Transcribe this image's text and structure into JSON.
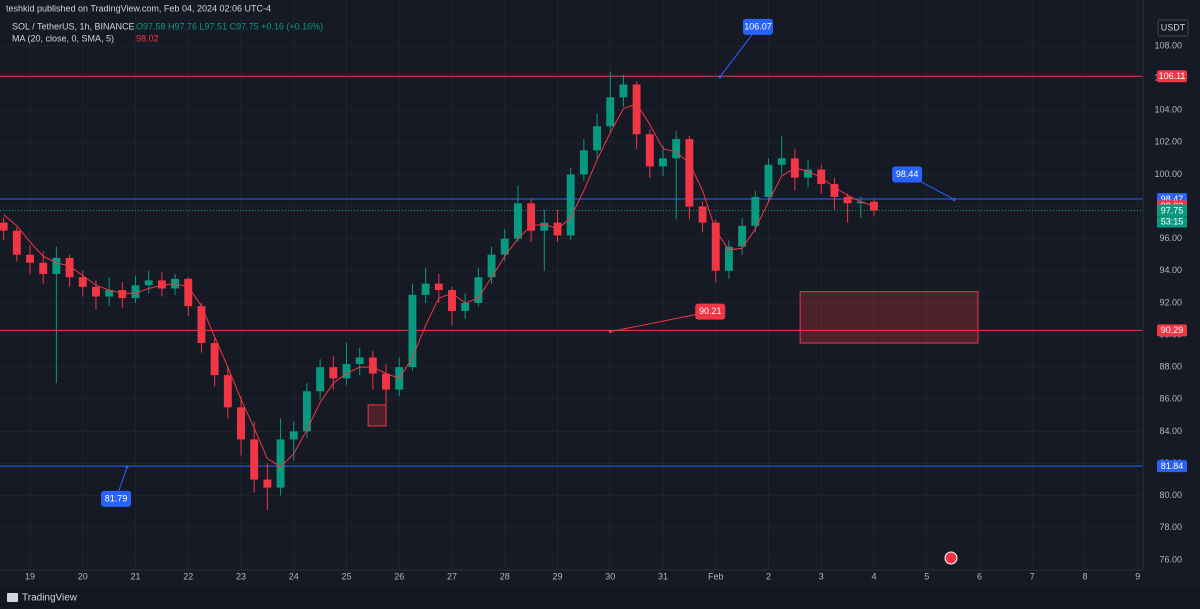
{
  "header": {
    "publisher": "teshkid published on TradingView.com, Feb 04, 2024 02:06 UTC-4",
    "symbol": "SOL / TetherUS, 1h, BINANCE",
    "ohlc": "O97.58 H97.76 L97.51 C97.75 +0.16 (+0.16%)",
    "brand": "TradingView"
  },
  "chart_data": {
    "type": "candlestick",
    "currency": "USDT",
    "countdown": "53:15",
    "up_color": "#089981",
    "down_color": "#f23645",
    "grid": true,
    "xlim": [
      -0.569,
      21.1
    ],
    "ylim": [
      75.37,
      110.86
    ],
    "xticks": [
      {
        "value": 0,
        "label": "19"
      },
      {
        "value": 1,
        "label": "20"
      },
      {
        "value": 2,
        "label": "21"
      },
      {
        "value": 3,
        "label": "22"
      },
      {
        "value": 4,
        "label": "23"
      },
      {
        "value": 5,
        "label": "24"
      },
      {
        "value": 6,
        "label": "25"
      },
      {
        "value": 7,
        "label": "26"
      },
      {
        "value": 8,
        "label": "27"
      },
      {
        "value": 9,
        "label": "28"
      },
      {
        "value": 10,
        "label": "29"
      },
      {
        "value": 11,
        "label": "30"
      },
      {
        "value": 12,
        "label": "31"
      },
      {
        "value": 13,
        "label": "Feb"
      },
      {
        "value": 14,
        "label": "2"
      },
      {
        "value": 15,
        "label": "3"
      },
      {
        "value": 16,
        "label": "4"
      },
      {
        "value": 17,
        "label": "5"
      },
      {
        "value": 18,
        "label": "6"
      },
      {
        "value": 19,
        "label": "7"
      },
      {
        "value": 20,
        "label": "8"
      },
      {
        "value": 21,
        "label": "9"
      }
    ],
    "yticks": [
      {
        "value": 76,
        "label": "76.00"
      },
      {
        "value": 78,
        "label": "78.00"
      },
      {
        "value": 80,
        "label": "80.00"
      },
      {
        "value": 82,
        "label": "82.00"
      },
      {
        "value": 84,
        "label": "84.00"
      },
      {
        "value": 86,
        "label": "86.00"
      },
      {
        "value": 88,
        "label": "88.00"
      },
      {
        "value": 90,
        "label": "90.00"
      },
      {
        "value": 92,
        "label": "92.00"
      },
      {
        "value": 94,
        "label": "94.00"
      },
      {
        "value": 96,
        "label": "96.00"
      },
      {
        "value": 98,
        "label": "98.00"
      },
      {
        "value": 100,
        "label": "100.00"
      },
      {
        "value": 102,
        "label": "102.00"
      },
      {
        "value": 104,
        "label": "104.00"
      },
      {
        "value": 106,
        "label": "106.00"
      },
      {
        "value": 108,
        "label": "108.00"
      }
    ],
    "x": [
      -0.5,
      -0.25,
      0,
      0.25,
      0.5,
      0.75,
      1,
      1.25,
      1.5,
      1.75,
      2,
      2.25,
      2.5,
      2.75,
      3,
      3.25,
      3.5,
      3.75,
      4,
      4.25,
      4.5,
      4.75,
      5,
      5.25,
      5.5,
      5.75,
      6,
      6.25,
      6.5,
      6.75,
      7,
      7.25,
      7.5,
      7.75,
      8,
      8.25,
      8.5,
      8.75,
      9,
      9.25,
      9.5,
      9.75,
      10,
      10.25,
      10.5,
      10.75,
      11,
      11.25,
      11.5,
      11.75,
      12,
      12.25,
      12.5,
      12.75,
      13,
      13.25,
      13.5,
      13.75,
      14,
      14.25,
      14.5,
      14.75,
      15,
      15.25,
      15.5,
      15.75,
      16
    ],
    "open": [
      97.0,
      96.5,
      95.0,
      94.5,
      93.8,
      94.8,
      93.6,
      93.0,
      92.4,
      92.8,
      92.3,
      93.1,
      93.4,
      92.9,
      93.5,
      91.8,
      89.5,
      87.5,
      85.5,
      83.5,
      81.0,
      80.5,
      83.5,
      84.0,
      86.5,
      88.0,
      87.3,
      88.2,
      88.6,
      87.6,
      86.6,
      88.0,
      92.5,
      93.2,
      92.8,
      91.5,
      92.0,
      93.6,
      95.0,
      96.0,
      98.2,
      96.5,
      97.0,
      96.2,
      100.0,
      101.5,
      103.0,
      104.8,
      105.6,
      102.5,
      100.5,
      101.0,
      102.2,
      98.0,
      97.0,
      94.0,
      95.5,
      96.8,
      98.6,
      100.6,
      101.0,
      99.8,
      100.3,
      99.4,
      98.6,
      98.2,
      98.3
    ],
    "high": [
      97.3,
      96.7,
      95.6,
      95.2,
      95.5,
      95.0,
      94.0,
      93.4,
      93.6,
      93.3,
      93.7,
      94.0,
      93.9,
      93.8,
      93.6,
      92.0,
      89.8,
      88.0,
      86.2,
      84.6,
      82.0,
      84.8,
      84.6,
      87.0,
      88.5,
      88.7,
      89.5,
      89.2,
      89.0,
      88.2,
      88.6,
      93.2,
      94.2,
      93.8,
      93.0,
      92.6,
      94.2,
      95.5,
      96.6,
      99.3,
      98.5,
      97.8,
      97.8,
      100.4,
      102.2,
      103.8,
      106.4,
      106.2,
      105.8,
      102.8,
      101.8,
      102.7,
      102.4,
      98.3,
      97.2,
      95.9,
      97.3,
      99.0,
      101.0,
      102.4,
      101.6,
      100.9,
      100.6,
      99.8,
      98.8,
      98.6,
      98.5
    ],
    "low": [
      95.9,
      94.6,
      93.8,
      93.2,
      87.0,
      93.0,
      92.4,
      91.6,
      91.8,
      91.7,
      92.0,
      92.6,
      92.4,
      92.5,
      91.2,
      88.9,
      86.8,
      84.8,
      82.5,
      80.2,
      79.1,
      80.0,
      82.2,
      83.6,
      86.0,
      86.6,
      86.9,
      87.5,
      86.6,
      85.7,
      86.2,
      87.8,
      92.0,
      92.0,
      90.6,
      91.0,
      91.8,
      93.2,
      94.6,
      95.8,
      95.8,
      94.0,
      95.8,
      95.9,
      99.6,
      101.0,
      102.6,
      104.2,
      101.6,
      99.8,
      99.9,
      97.2,
      97.2,
      96.4,
      93.3,
      93.5,
      95.0,
      96.4,
      98.3,
      100.0,
      99.0,
      99.2,
      98.8,
      97.8,
      97.0,
      97.3,
      97.4
    ],
    "close": [
      96.5,
      95.0,
      94.5,
      93.8,
      94.8,
      93.6,
      93.0,
      92.4,
      92.8,
      92.3,
      93.1,
      93.4,
      92.9,
      93.5,
      91.8,
      89.5,
      87.5,
      85.5,
      83.5,
      81.0,
      80.5,
      83.5,
      84.0,
      86.5,
      88.0,
      87.3,
      88.2,
      88.6,
      87.6,
      86.6,
      88.0,
      92.5,
      93.2,
      92.8,
      91.5,
      92.0,
      93.6,
      95.0,
      96.0,
      98.2,
      96.5,
      97.0,
      96.2,
      100.0,
      101.5,
      103.0,
      104.8,
      105.6,
      102.5,
      100.5,
      101.0,
      102.2,
      98.0,
      97.0,
      94.0,
      95.5,
      96.8,
      98.6,
      100.6,
      101.0,
      99.8,
      100.3,
      99.4,
      98.6,
      98.2,
      98.3,
      97.75
    ],
    "ma": {
      "name": "MA (20, close, 0, SMA, 5)",
      "color": "#f23645",
      "values": [
        97.5,
        96.8,
        95.8,
        94.9,
        94.5,
        94.3,
        93.7,
        93.1,
        92.8,
        92.6,
        92.6,
        92.9,
        93.1,
        93.2,
        93.0,
        91.8,
        89.9,
        88.0,
        86.0,
        84.2,
        82.3,
        81.8,
        82.6,
        84.1,
        85.8,
        87.0,
        87.6,
        88.0,
        88.0,
        87.6,
        87.3,
        88.6,
        90.6,
        92.3,
        92.6,
        92.0,
        92.3,
        93.6,
        94.9,
        96.0,
        96.8,
        96.9,
        96.6,
        97.3,
        99.0,
        100.9,
        102.6,
        104.1,
        104.4,
        103.1,
        101.6,
        101.4,
        100.7,
        99.0,
        96.5,
        95.3,
        95.4,
        96.6,
        98.3,
        99.9,
        100.4,
        100.2,
        99.8,
        99.2,
        98.7,
        98.3,
        98.02
      ]
    },
    "levels": [
      {
        "value": 106.11,
        "color": "#f23645"
      },
      {
        "value": 98.47,
        "color": "#2962ff"
      },
      {
        "value": 90.29,
        "color": "#f23645"
      },
      {
        "value": 81.84,
        "color": "#2962ff"
      }
    ],
    "annotations": [
      {
        "label": 106.07,
        "x": 13.08,
        "color": "#2962ff"
      },
      {
        "label": 98.44,
        "x": 17.52,
        "color": "#2962ff"
      },
      {
        "label": 90.21,
        "x": 11.0,
        "color": "#f23645"
      },
      {
        "label": 81.79,
        "x": 1.84,
        "color": "#2962ff"
      }
    ],
    "zones": [
      {
        "x": [
          14.6,
          17.97
        ],
        "y": [
          92.7,
          89.5
        ],
        "color": "#f23645"
      },
      {
        "x": [
          6.41,
          6.75
        ],
        "y": [
          85.65,
          84.34
        ],
        "color": "#f23645"
      }
    ]
  }
}
